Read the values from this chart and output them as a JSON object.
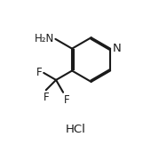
{
  "bg": "#ffffff",
  "lw": 1.5,
  "lw_double": 1.5,
  "figsize": [
    1.7,
    1.63
  ],
  "dpi": 100,
  "bond_color": "#1a1a1a",
  "text_color": "#1a1a1a",
  "hcl_label": "HCl",
  "nh2_label": "H₂N",
  "n_label": "N",
  "f1_label": "F",
  "f2_label": "F",
  "f3_label": "F",
  "font_size": 8.5,
  "font_size_hcl": 9.5
}
